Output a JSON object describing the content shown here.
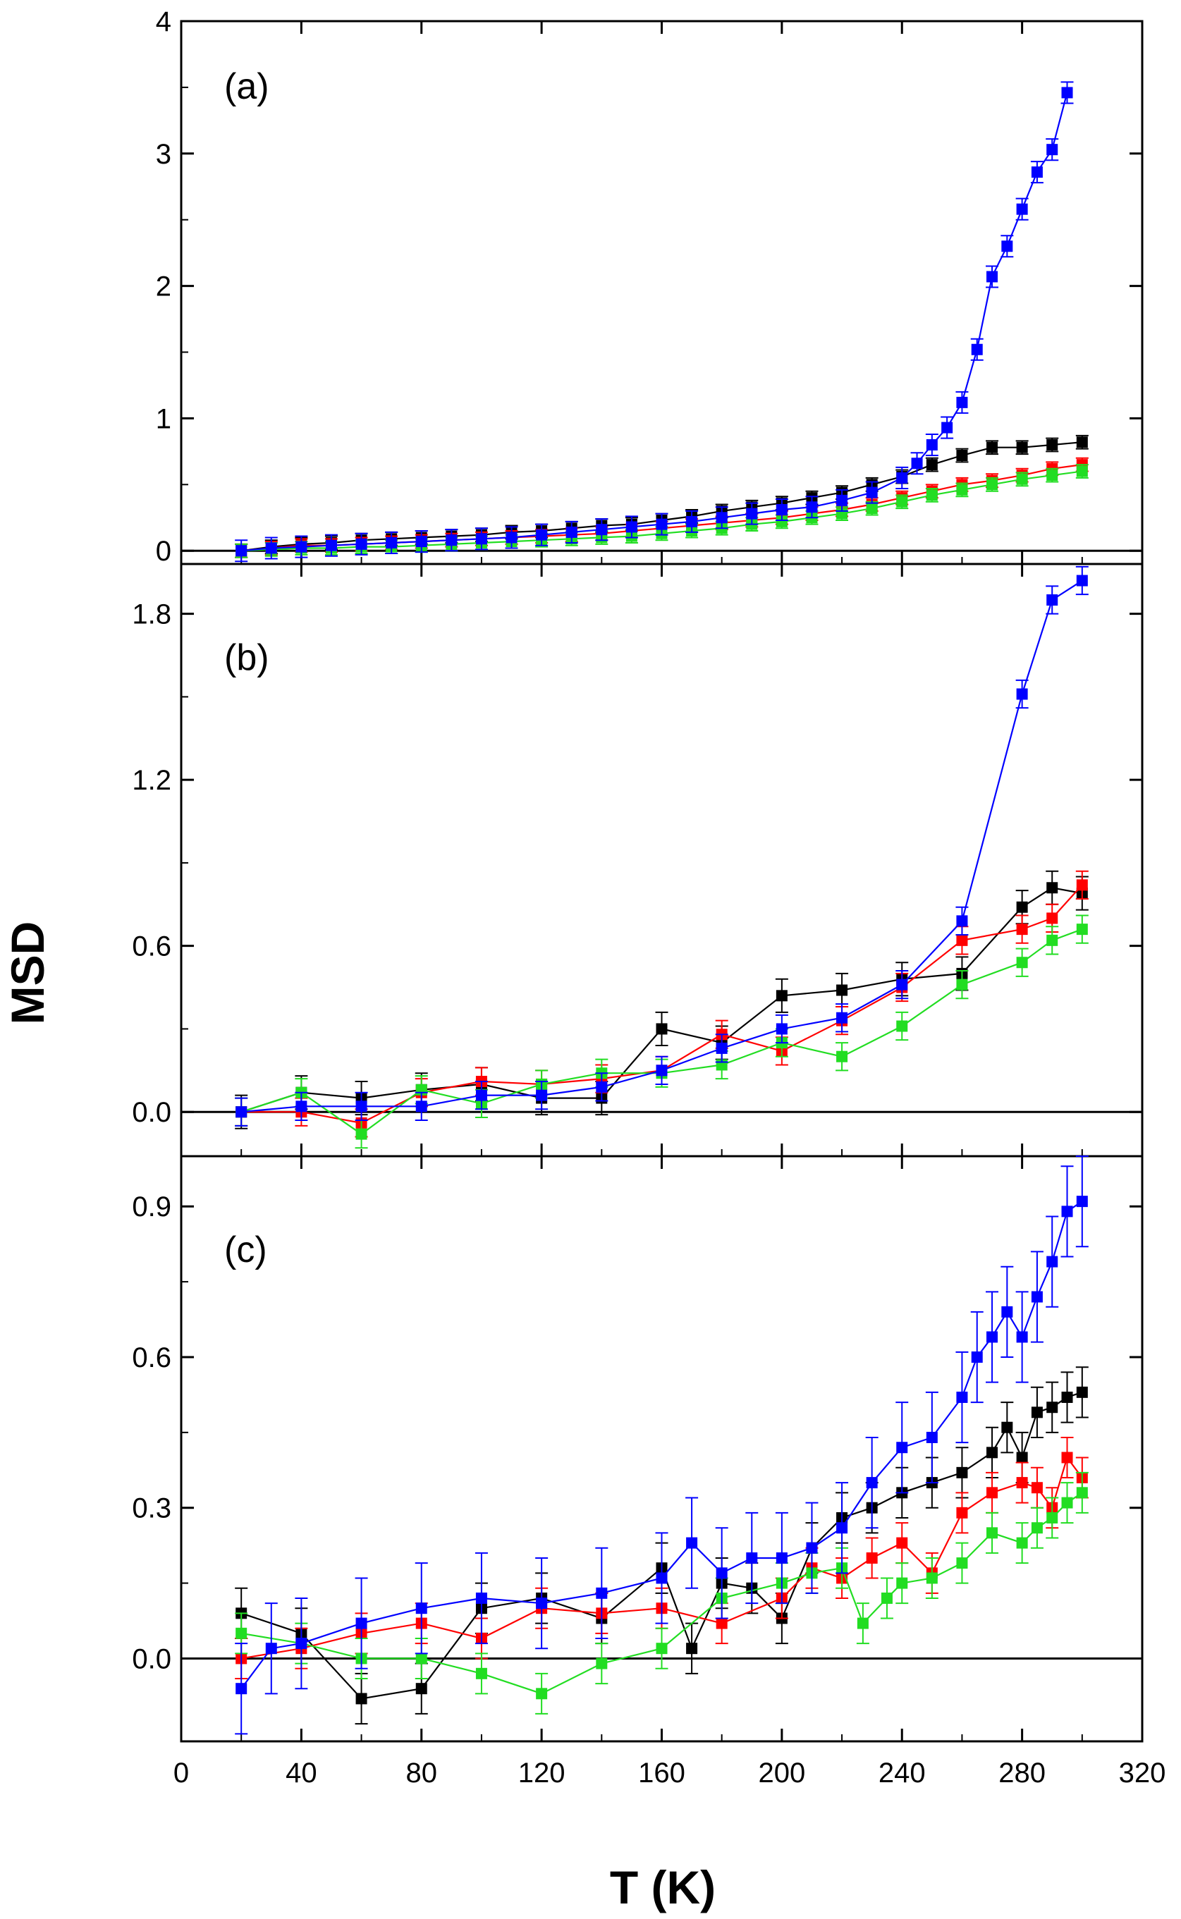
{
  "chart_data": {
    "type": "scatter",
    "xlabel": "T (K)",
    "ylabel": "MSD",
    "xlim": [
      0,
      320
    ],
    "xticks": [
      "0",
      "40",
      "80",
      "120",
      "160",
      "200",
      "240",
      "280",
      "320"
    ],
    "colors": {
      "black": "#000000",
      "red": "#ff0000",
      "green": "#22dd22",
      "blue": "#0000ff"
    },
    "panels": [
      {
        "label": "(a)",
        "ylim": [
          -0.1,
          4.0
        ],
        "yticks": [
          "0",
          "1",
          "2",
          "3",
          "4"
        ],
        "yticks_values": [
          0,
          1,
          2,
          3,
          4
        ],
        "series": [
          {
            "name": "black",
            "color": "#000000",
            "x": [
              20,
              30,
              40,
              50,
              60,
              70,
              80,
              90,
              100,
              110,
              120,
              130,
              140,
              150,
              160,
              170,
              180,
              190,
              200,
              210,
              220,
              230,
              240,
              250,
              260,
              270,
              280,
              290,
              300
            ],
            "y": [
              0.0,
              0.03,
              0.05,
              0.06,
              0.08,
              0.09,
              0.1,
              0.11,
              0.12,
              0.14,
              0.15,
              0.17,
              0.19,
              0.2,
              0.23,
              0.26,
              0.3,
              0.33,
              0.36,
              0.4,
              0.44,
              0.5,
              0.56,
              0.65,
              0.72,
              0.78,
              0.78,
              0.8,
              0.82
            ],
            "err": 0.05
          },
          {
            "name": "red",
            "color": "#ff0000",
            "x": [
              20,
              30,
              40,
              50,
              60,
              70,
              80,
              90,
              100,
              110,
              120,
              130,
              140,
              150,
              160,
              170,
              180,
              190,
              200,
              210,
              220,
              230,
              240,
              250,
              260,
              270,
              280,
              290,
              300
            ],
            "y": [
              0.0,
              0.02,
              0.04,
              0.04,
              0.05,
              0.06,
              0.07,
              0.08,
              0.09,
              0.1,
              0.11,
              0.12,
              0.13,
              0.15,
              0.17,
              0.19,
              0.21,
              0.23,
              0.25,
              0.28,
              0.31,
              0.35,
              0.4,
              0.45,
              0.5,
              0.53,
              0.57,
              0.62,
              0.65
            ],
            "err": 0.05
          },
          {
            "name": "green",
            "color": "#22dd22",
            "x": [
              20,
              30,
              40,
              50,
              60,
              70,
              80,
              90,
              100,
              110,
              120,
              130,
              140,
              150,
              160,
              170,
              180,
              190,
              200,
              210,
              220,
              230,
              240,
              250,
              260,
              270,
              280,
              290,
              300
            ],
            "y": [
              0.0,
              0.01,
              0.02,
              0.02,
              0.03,
              0.03,
              0.04,
              0.05,
              0.06,
              0.07,
              0.08,
              0.09,
              0.1,
              0.11,
              0.13,
              0.15,
              0.17,
              0.2,
              0.22,
              0.25,
              0.28,
              0.32,
              0.37,
              0.42,
              0.46,
              0.5,
              0.54,
              0.57,
              0.6
            ],
            "err": 0.05
          },
          {
            "name": "blue",
            "color": "#0000ff",
            "x": [
              20,
              30,
              40,
              50,
              60,
              70,
              80,
              90,
              100,
              110,
              120,
              130,
              140,
              150,
              160,
              170,
              180,
              190,
              200,
              210,
              220,
              230,
              240,
              245,
              250,
              255,
              260,
              265,
              270,
              275,
              280,
              285,
              290,
              295
            ],
            "y": [
              0.0,
              0.02,
              0.03,
              0.04,
              0.05,
              0.06,
              0.07,
              0.08,
              0.09,
              0.1,
              0.12,
              0.14,
              0.16,
              0.18,
              0.2,
              0.22,
              0.25,
              0.28,
              0.31,
              0.33,
              0.38,
              0.44,
              0.55,
              0.66,
              0.8,
              0.93,
              1.12,
              1.52,
              2.07,
              2.3,
              2.58,
              2.86,
              3.03,
              3.46
            ],
            "err": 0.08
          }
        ]
      },
      {
        "label": "(b)",
        "ylim": [
          -0.16,
          1.98
        ],
        "yticks": [
          "0.0",
          "0.6",
          "1.2",
          "1.8"
        ],
        "yticks_values": [
          0.0,
          0.6,
          1.2,
          1.8
        ],
        "series": [
          {
            "name": "black",
            "color": "#000000",
            "x": [
              20,
              40,
              60,
              80,
              100,
              120,
              140,
              160,
              180,
              200,
              220,
              240,
              260,
              280,
              290,
              300
            ],
            "y": [
              0.0,
              0.07,
              0.05,
              0.08,
              0.1,
              0.05,
              0.05,
              0.3,
              0.25,
              0.42,
              0.44,
              0.48,
              0.5,
              0.74,
              0.81,
              0.79
            ],
            "err": 0.06
          },
          {
            "name": "red",
            "color": "#ff0000",
            "x": [
              20,
              40,
              60,
              80,
              100,
              120,
              140,
              160,
              180,
              200,
              220,
              240,
              260,
              280,
              290,
              300
            ],
            "y": [
              0.0,
              0.0,
              -0.04,
              0.07,
              0.11,
              0.1,
              0.12,
              0.15,
              0.28,
              0.22,
              0.33,
              0.45,
              0.62,
              0.66,
              0.7,
              0.82
            ],
            "err": 0.05
          },
          {
            "name": "green",
            "color": "#22dd22",
            "x": [
              20,
              40,
              60,
              80,
              100,
              120,
              140,
              160,
              180,
              200,
              220,
              240,
              260,
              280,
              290,
              300
            ],
            "y": [
              0.0,
              0.07,
              -0.08,
              0.08,
              0.03,
              0.1,
              0.14,
              0.14,
              0.17,
              0.25,
              0.2,
              0.31,
              0.46,
              0.54,
              0.62,
              0.66
            ],
            "err": 0.05
          },
          {
            "name": "blue",
            "color": "#0000ff",
            "x": [
              20,
              40,
              60,
              80,
              100,
              120,
              140,
              160,
              180,
              200,
              220,
              240,
              260,
              280,
              290,
              300
            ],
            "y": [
              0.0,
              0.02,
              0.02,
              0.02,
              0.06,
              0.06,
              0.09,
              0.15,
              0.23,
              0.3,
              0.34,
              0.46,
              0.69,
              1.51,
              1.85,
              1.92
            ],
            "err": 0.05
          }
        ]
      },
      {
        "label": "(c)",
        "ylim": [
          -0.165,
          1.0
        ],
        "yticks": [
          "0.0",
          "0.3",
          "0.6",
          "0.9"
        ],
        "yticks_values": [
          0.0,
          0.3,
          0.6,
          0.9
        ],
        "series": [
          {
            "name": "black",
            "color": "#000000",
            "x": [
              20,
              40,
              60,
              80,
              100,
              120,
              140,
              160,
              170,
              180,
              190,
              200,
              210,
              220,
              230,
              240,
              250,
              260,
              270,
              275,
              280,
              285,
              290,
              295,
              300
            ],
            "y": [
              0.09,
              0.05,
              -0.08,
              -0.06,
              0.1,
              0.12,
              0.08,
              0.18,
              0.02,
              0.15,
              0.14,
              0.08,
              0.22,
              0.28,
              0.3,
              0.33,
              0.35,
              0.37,
              0.41,
              0.46,
              0.4,
              0.49,
              0.5,
              0.52,
              0.53
            ],
            "err": 0.05
          },
          {
            "name": "red",
            "color": "#ff0000",
            "x": [
              20,
              40,
              60,
              80,
              100,
              120,
              140,
              160,
              180,
              200,
              210,
              220,
              230,
              240,
              250,
              260,
              270,
              280,
              285,
              290,
              295,
              300
            ],
            "y": [
              0.0,
              0.02,
              0.05,
              0.07,
              0.04,
              0.1,
              0.09,
              0.1,
              0.07,
              0.12,
              0.18,
              0.16,
              0.2,
              0.23,
              0.17,
              0.29,
              0.33,
              0.35,
              0.34,
              0.3,
              0.4,
              0.36
            ],
            "err": 0.04
          },
          {
            "name": "green",
            "color": "#22dd22",
            "x": [
              20,
              40,
              60,
              80,
              100,
              120,
              140,
              160,
              180,
              200,
              210,
              220,
              227,
              235,
              240,
              250,
              260,
              270,
              280,
              285,
              290,
              295,
              300
            ],
            "y": [
              0.05,
              0.03,
              0.0,
              0.0,
              -0.03,
              -0.07,
              -0.01,
              0.02,
              0.12,
              0.15,
              0.17,
              0.18,
              0.07,
              0.12,
              0.15,
              0.16,
              0.19,
              0.25,
              0.23,
              0.26,
              0.28,
              0.31,
              0.33
            ],
            "err": 0.04
          },
          {
            "name": "blue",
            "color": "#0000ff",
            "x": [
              20,
              30,
              40,
              60,
              80,
              100,
              120,
              140,
              160,
              170,
              180,
              190,
              200,
              210,
              220,
              230,
              240,
              250,
              260,
              265,
              270,
              275,
              280,
              285,
              290,
              295,
              300
            ],
            "y": [
              -0.06,
              0.02,
              0.03,
              0.07,
              0.1,
              0.12,
              0.11,
              0.13,
              0.16,
              0.23,
              0.17,
              0.2,
              0.2,
              0.22,
              0.26,
              0.35,
              0.42,
              0.44,
              0.52,
              0.6,
              0.64,
              0.69,
              0.64,
              0.72,
              0.79,
              0.89,
              0.91
            ],
            "err": 0.09
          }
        ]
      }
    ]
  }
}
